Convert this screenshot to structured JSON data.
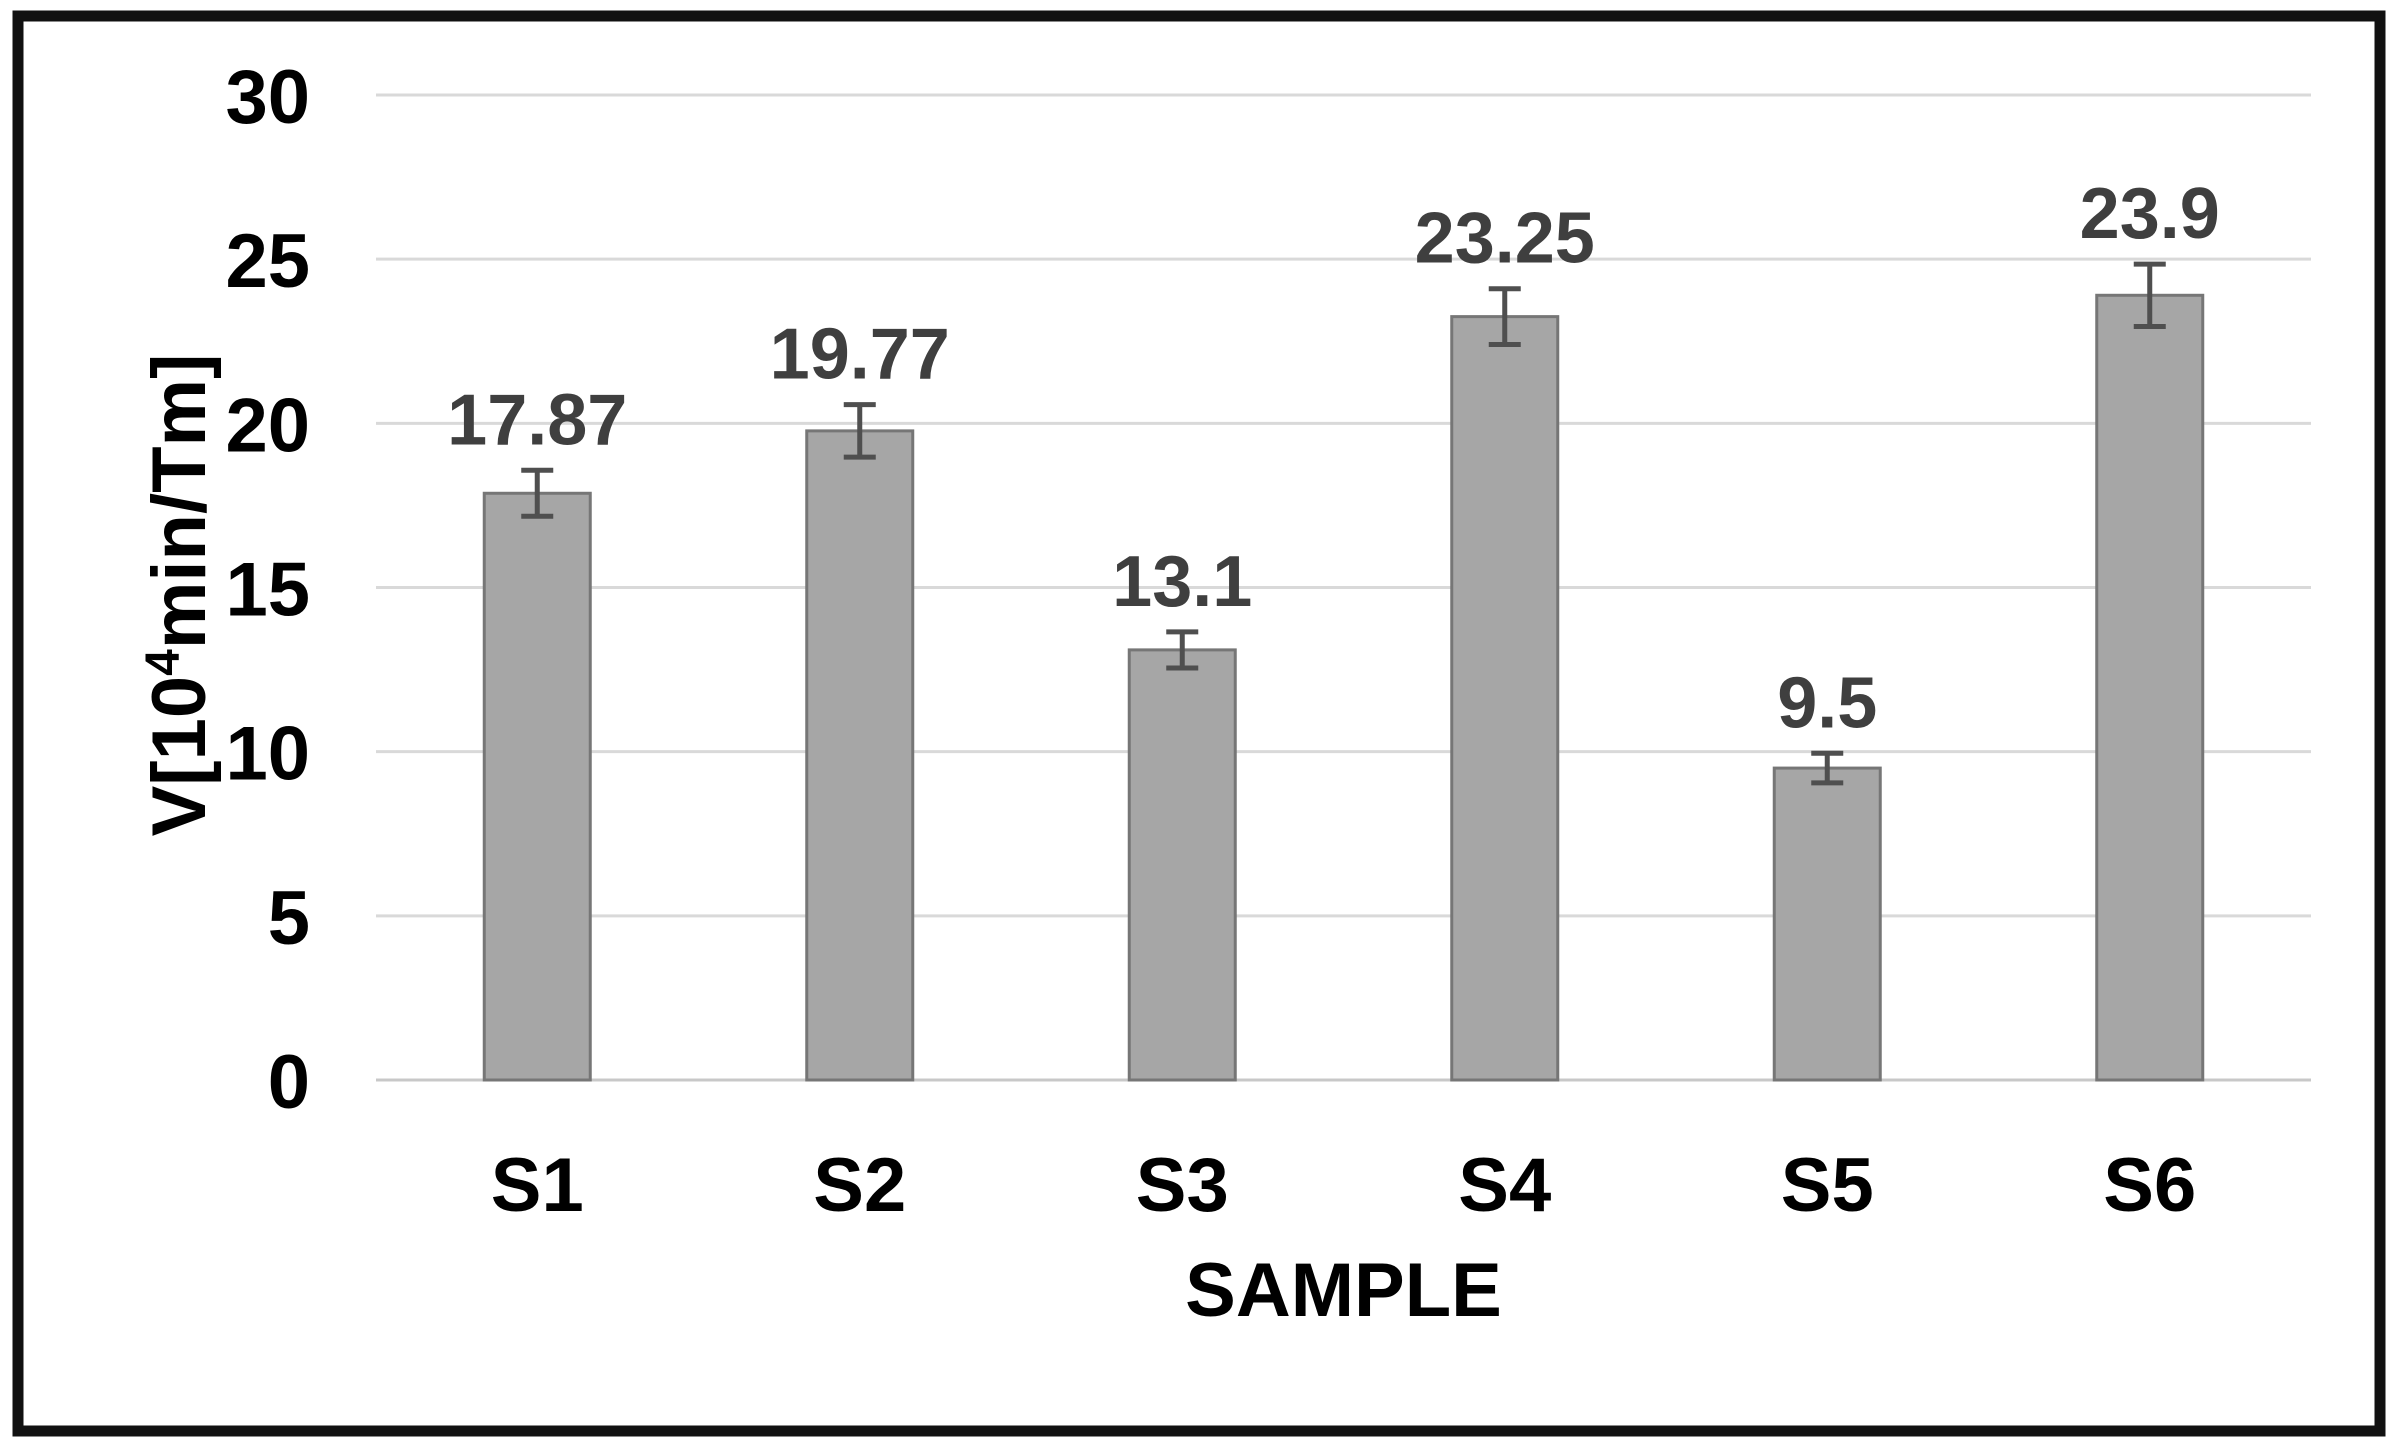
{
  "chart_data": {
    "type": "bar",
    "title": "",
    "categories": [
      "S1",
      "S2",
      "S3",
      "S4",
      "S5",
      "S6"
    ],
    "values": [
      17.87,
      19.77,
      13.1,
      23.25,
      9.5,
      23.9
    ],
    "data_labels": [
      "17.87",
      "19.77",
      "13.1",
      "23.25",
      "9.5",
      "23.9"
    ],
    "error_bars": [
      0.7,
      0.8,
      0.55,
      0.85,
      0.45,
      0.95
    ],
    "xlabel": "SAMPLE",
    "ylabel": "V[10⁴min/Tm]",
    "ylabel_parts": {
      "prefix": "V[10",
      "superscript": "4",
      "suffix": "min/Tm]"
    },
    "ylim": [
      0,
      30
    ],
    "ytick_step": 5,
    "yticks": [
      0,
      5,
      10,
      15,
      20,
      25,
      30
    ],
    "grid": true,
    "legend": "none",
    "colors": {
      "bar_fill": "#A6A6A6",
      "bar_border": "#767676",
      "error_bar": "#4F4F4F",
      "data_label": "#3F3F3F",
      "gridline": "#D9D9D9",
      "axis_line": "#C8C8C8",
      "tick_label": "#000000",
      "axis_title": "#000000",
      "frame_border": "#111111",
      "background": "#FFFFFF"
    }
  }
}
